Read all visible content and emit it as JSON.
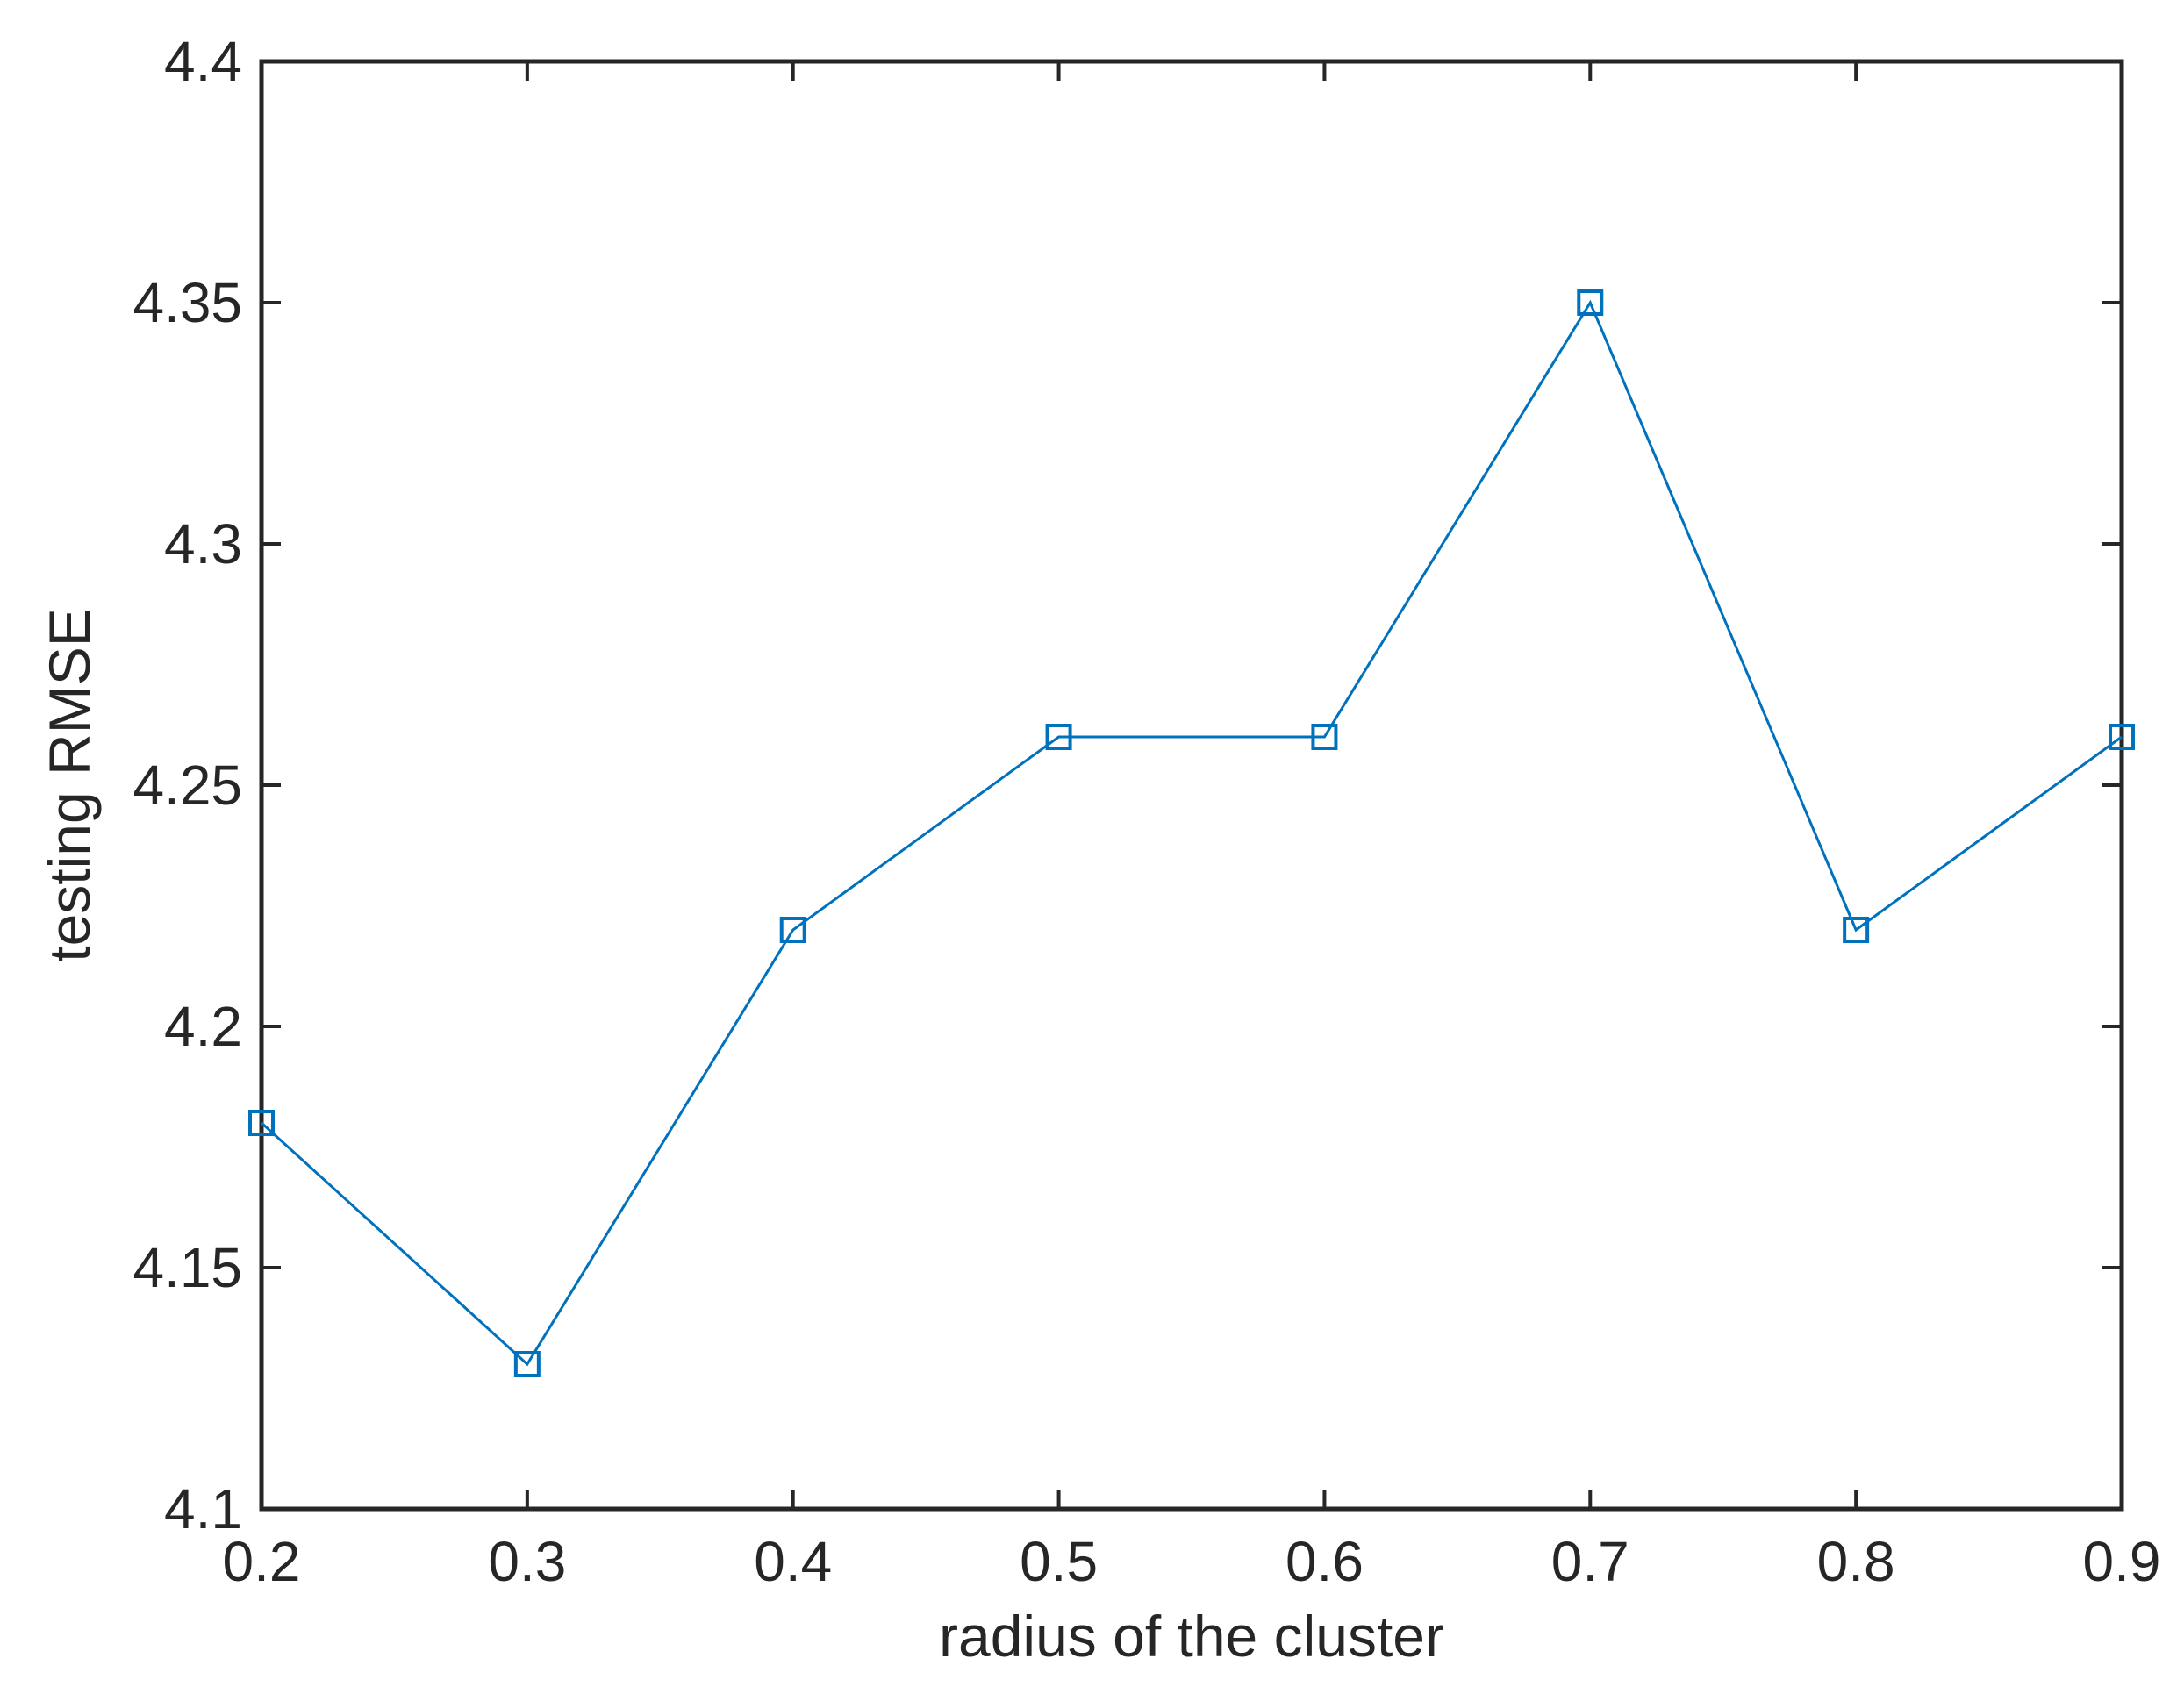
{
  "chart_data": {
    "type": "line",
    "title": "",
    "xlabel": "radius of the cluster",
    "ylabel": "testing RMSE",
    "xlim": [
      0.2,
      0.9
    ],
    "ylim": [
      4.1,
      4.4
    ],
    "x_ticks": [
      "0.2",
      "0.3",
      "0.4",
      "0.5",
      "0.6",
      "0.7",
      "0.8",
      "0.9"
    ],
    "y_ticks": [
      "4.1",
      "4.15",
      "4.2",
      "4.25",
      "4.3",
      "4.35",
      "4.4"
    ],
    "grid": false,
    "marker": "square",
    "series": [
      {
        "x": [
          0.2,
          0.3,
          0.4,
          0.5,
          0.6,
          0.7,
          0.8,
          0.9
        ],
        "y": [
          4.18,
          4.13,
          4.22,
          4.26,
          4.26,
          4.35,
          4.22,
          4.26
        ],
        "color": "#0072BD"
      }
    ]
  }
}
